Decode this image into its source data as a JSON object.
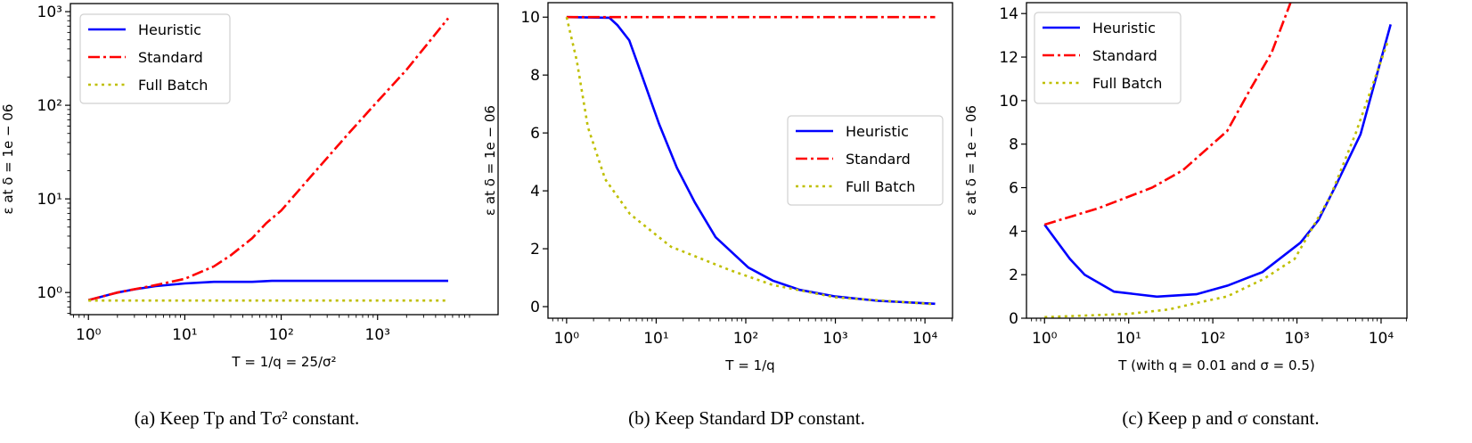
{
  "chart_data": [
    {
      "type": "line",
      "caption": "(a) Keep Tp and Tσ² constant.",
      "xlabel": "T = 1/q = 25/σ²",
      "ylabel": "ε at δ = 1e − 06",
      "xscale": "log",
      "yscale": "log",
      "xlim": [
        0.65,
        17800
      ],
      "ylim": [
        0.58,
        1220
      ],
      "xticks": [
        {
          "v": 1,
          "label": "10⁰"
        },
        {
          "v": 10,
          "label": "10¹"
        },
        {
          "v": 100,
          "label": "10²"
        },
        {
          "v": 1000,
          "label": "10³"
        }
      ],
      "yticks": [
        {
          "v": 1,
          "label": "10⁰"
        },
        {
          "v": 10,
          "label": "10¹"
        },
        {
          "v": 100,
          "label": "10²"
        },
        {
          "v": 1000,
          "label": "10³"
        }
      ],
      "legend": "top-left",
      "grid": false,
      "series": [
        {
          "name": "Heuristic",
          "color": "#0000ff",
          "style": "solid",
          "points": [
            [
              1,
              0.83
            ],
            [
              2,
              1.0
            ],
            [
              3,
              1.08
            ],
            [
              5,
              1.17
            ],
            [
              10,
              1.25
            ],
            [
              20,
              1.3
            ],
            [
              50,
              1.3
            ],
            [
              80,
              1.33
            ],
            [
              200,
              1.33
            ],
            [
              1000,
              1.33
            ],
            [
              5400,
              1.33
            ]
          ]
        },
        {
          "name": "Standard",
          "color": "#ff0000",
          "style": "dashdot",
          "points": [
            [
              1,
              0.83
            ],
            [
              2,
              1.0
            ],
            [
              5,
              1.2
            ],
            [
              10,
              1.4
            ],
            [
              20,
              1.9
            ],
            [
              30,
              2.5
            ],
            [
              50,
              3.8
            ],
            [
              70,
              5.5
            ],
            [
              100,
              7.5
            ],
            [
              200,
              17
            ],
            [
              500,
              50
            ],
            [
              1000,
              110
            ],
            [
              2000,
              240
            ],
            [
              5400,
              850
            ]
          ]
        },
        {
          "name": "Full Batch",
          "color": "#bfbf00",
          "style": "dotted",
          "points": [
            [
              1,
              0.82
            ],
            [
              10,
              0.82
            ],
            [
              100,
              0.82
            ],
            [
              1000,
              0.82
            ],
            [
              5400,
              0.82
            ]
          ]
        }
      ]
    },
    {
      "type": "line",
      "caption": "(b) Keep Standard DP constant.",
      "xlabel": "T = 1/q",
      "ylabel": "ε at δ = 1e − 06",
      "xscale": "log",
      "yscale": "linear",
      "xlim": [
        0.62,
        20300
      ],
      "ylim": [
        -0.4,
        10.5
      ],
      "xticks": [
        {
          "v": 1,
          "label": "10⁰"
        },
        {
          "v": 10,
          "label": "10¹"
        },
        {
          "v": 100,
          "label": "10²"
        },
        {
          "v": 1000,
          "label": "10³"
        },
        {
          "v": 10000,
          "label": "10⁴"
        }
      ],
      "yticks": [
        {
          "v": 0,
          "label": "0"
        },
        {
          "v": 2,
          "label": "2"
        },
        {
          "v": 4,
          "label": "4"
        },
        {
          "v": 6,
          "label": "6"
        },
        {
          "v": 8,
          "label": "8"
        },
        {
          "v": 10,
          "label": "10"
        }
      ],
      "legend": "center-right",
      "grid": false,
      "series": [
        {
          "name": "Heuristic",
          "color": "#0000ff",
          "style": "solid",
          "points": [
            [
              1,
              10
            ],
            [
              3,
              9.98
            ],
            [
              3.7,
              9.72
            ],
            [
              5,
              9.2
            ],
            [
              6.9,
              8.0
            ],
            [
              10.8,
              6.3
            ],
            [
              17,
              4.8
            ],
            [
              27,
              3.6
            ],
            [
              46,
              2.4
            ],
            [
              107,
              1.35
            ],
            [
              200,
              0.9
            ],
            [
              400,
              0.58
            ],
            [
              1000,
              0.35
            ],
            [
              3000,
              0.2
            ],
            [
              13000,
              0.1
            ]
          ]
        },
        {
          "name": "Standard",
          "color": "#ff0000",
          "style": "dashdot",
          "points": [
            [
              1,
              10
            ],
            [
              10,
              10
            ],
            [
              100,
              10
            ],
            [
              1000,
              10
            ],
            [
              13000,
              10
            ]
          ]
        },
        {
          "name": "Full Batch",
          "color": "#bfbf00",
          "style": "dotted",
          "points": [
            [
              1,
              10
            ],
            [
              1.3,
              8.5
            ],
            [
              1.73,
              6.2
            ],
            [
              2.7,
              4.4
            ],
            [
              5.1,
              3.2
            ],
            [
              14.6,
              2.07
            ],
            [
              68,
              1.25
            ],
            [
              200,
              0.75
            ],
            [
              1000,
              0.32
            ],
            [
              13000,
              0.08
            ]
          ]
        }
      ]
    },
    {
      "type": "line",
      "caption": "(c) Keep p and σ constant.",
      "xlabel": "T (with q = 0.01 and σ = 0.5)",
      "ylabel": "ε at δ = 1e − 06",
      "xscale": "log",
      "yscale": "linear",
      "xlim": [
        0.61,
        20300
      ],
      "ylim": [
        0,
        14.5
      ],
      "xticks": [
        {
          "v": 1,
          "label": "10⁰"
        },
        {
          "v": 10,
          "label": "10¹"
        },
        {
          "v": 100,
          "label": "10²"
        },
        {
          "v": 1000,
          "label": "10³"
        },
        {
          "v": 10000,
          "label": "10⁴"
        }
      ],
      "yticks": [
        {
          "v": 0,
          "label": "0"
        },
        {
          "v": 2,
          "label": "2"
        },
        {
          "v": 4,
          "label": "4"
        },
        {
          "v": 6,
          "label": "6"
        },
        {
          "v": 8,
          "label": "8"
        },
        {
          "v": 10,
          "label": "10"
        },
        {
          "v": 12,
          "label": "12"
        },
        {
          "v": 14,
          "label": "14"
        }
      ],
      "legend": "top-left",
      "grid": false,
      "series": [
        {
          "name": "Heuristic",
          "color": "#0000ff",
          "style": "solid",
          "points": [
            [
              1,
              4.3
            ],
            [
              2,
              2.73
            ],
            [
              3,
              2.0
            ],
            [
              6.7,
              1.22
            ],
            [
              21.6,
              0.99
            ],
            [
              64,
              1.1
            ],
            [
              150,
              1.5
            ],
            [
              390,
              2.12
            ],
            [
              1100,
              3.47
            ],
            [
              1800,
              4.5
            ],
            [
              2900,
              6.1
            ],
            [
              5700,
              8.45
            ],
            [
              13000,
              13.5
            ]
          ]
        },
        {
          "name": "Standard",
          "color": "#ff0000",
          "style": "dashdot",
          "points": [
            [
              1,
              4.3
            ],
            [
              4.4,
              5.06
            ],
            [
              19,
              6.0
            ],
            [
              44,
              6.8
            ],
            [
              148,
              8.6
            ],
            [
              277,
              10.5
            ],
            [
              500,
              12.2
            ],
            [
              830,
              14.45
            ],
            [
              1200,
              17
            ]
          ]
        },
        {
          "name": "Full Batch",
          "color": "#bfbf00",
          "style": "dotted",
          "points": [
            [
              1,
              0.05
            ],
            [
              10,
              0.2
            ],
            [
              30,
              0.4
            ],
            [
              64,
              0.7
            ],
            [
              148,
              1.0
            ],
            [
              400,
              1.8
            ],
            [
              940,
              2.73
            ],
            [
              2500,
              5.6
            ],
            [
              5000,
              8.5
            ],
            [
              12000,
              12.7
            ]
          ]
        }
      ]
    }
  ]
}
